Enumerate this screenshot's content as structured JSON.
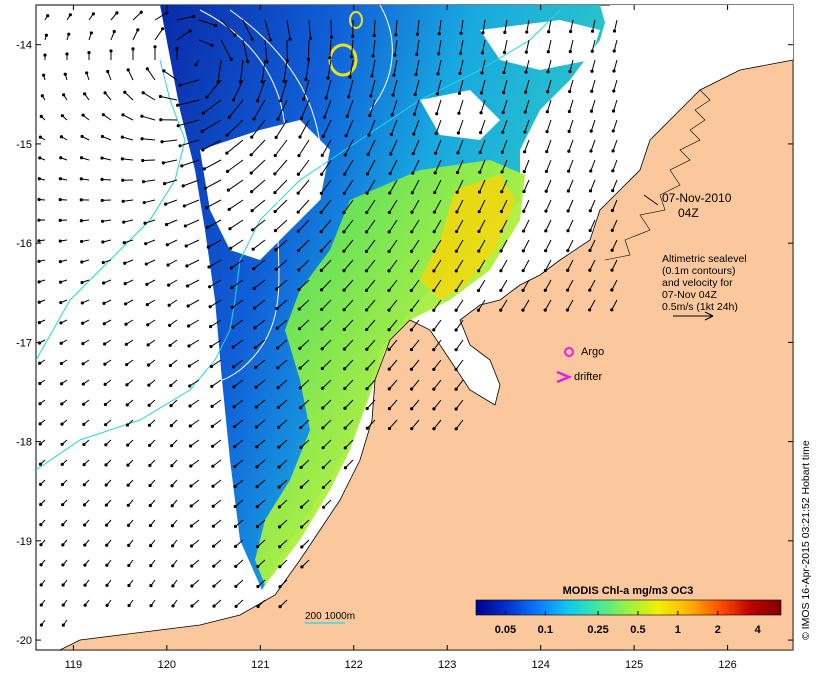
{
  "colors": {
    "land": "#fbc89e",
    "no_data": "#ffffff",
    "contour_sealevel": "#ffffff",
    "isobath": "#22d4e8",
    "argo": "#e020e0",
    "drifter": "#e020e0"
  },
  "axes": {
    "x_ticks": [
      "119",
      "120",
      "121",
      "122",
      "123",
      "124",
      "125",
      "126"
    ],
    "y_ticks": [
      "-14",
      "-15",
      "-16",
      "-17",
      "-18",
      "-19",
      "-20"
    ],
    "lon_range": [
      118.6,
      126.7
    ],
    "lat_range": [
      -20.1,
      -13.6
    ]
  },
  "annotations": {
    "date": "07-Nov-2010",
    "time": "04Z",
    "legend_line1": "Altimetric sealevel",
    "legend_line2": "(0.1m contours)",
    "legend_line3": "and velocity for",
    "legend_line4": "07-Nov 04Z",
    "legend_line5": "0.5m/s (1kt 24h)",
    "argo_label": "Argo",
    "drifter_label": "drifter",
    "isobath_label": "200  1000m"
  },
  "colorbar": {
    "title": "MODIS Chl-a mg/m3 OC3",
    "tick_labels": [
      "0.05",
      "0.1",
      "0.25",
      "0.5",
      "1",
      "2",
      "4"
    ],
    "tick_values": [
      0.05,
      0.1,
      0.25,
      0.5,
      1,
      2,
      4
    ],
    "range": [
      0.03,
      6
    ],
    "scale": "log",
    "colormap": [
      "#00008f",
      "#0030c8",
      "#0a78ff",
      "#10c8f0",
      "#40e8a0",
      "#a0f040",
      "#f0f000",
      "#ffb000",
      "#ff5000",
      "#c00000",
      "#800000"
    ]
  },
  "credit": "© IMOS 16-Apr-2015 03:21:52 Hobart time",
  "markers": {
    "argo": {
      "lon": 124.3,
      "lat": -17.05
    },
    "drifter": {
      "lon": 124.2,
      "lat": -17.3
    }
  },
  "velocity_scale_ms": 0.5
}
